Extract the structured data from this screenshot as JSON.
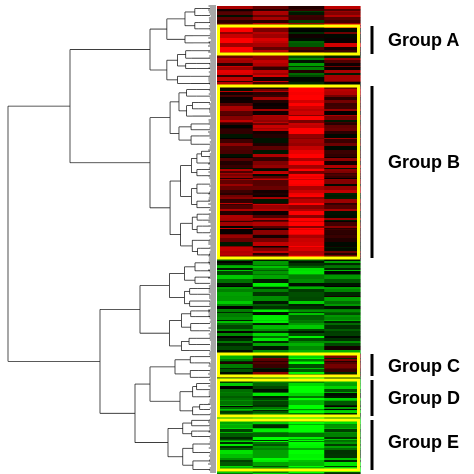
{
  "chart_data": {
    "type": "heatmap",
    "columns": 4,
    "color_scale": {
      "low": "#00ff00",
      "mid": "#000000",
      "high": "#ff0000"
    },
    "highlight_color": "#ffff00",
    "groups": [
      {
        "id": "A",
        "label": "Group A",
        "pattern": [
          0.85,
          0.8,
          -0.1,
          0.4
        ]
      },
      {
        "id": "B",
        "label": "Group B",
        "pattern": [
          0.35,
          0.35,
          0.9,
          0.3
        ]
      },
      {
        "id": "C",
        "label": "Group C",
        "pattern": [
          -0.3,
          0.1,
          -0.7,
          0.1
        ]
      },
      {
        "id": "D",
        "label": "Group D",
        "pattern": [
          -0.4,
          -0.5,
          -0.9,
          -0.4
        ]
      },
      {
        "id": "E",
        "label": "Group E",
        "pattern": [
          -0.6,
          -0.6,
          -0.9,
          -0.6
        ]
      }
    ],
    "unlabeled_clusters": [
      {
        "position": "above-A",
        "pattern": [
          0.3,
          0.3,
          0.1,
          0.6
        ]
      },
      {
        "position": "between-A-and-B",
        "pattern": [
          0.5,
          0.4,
          -0.2,
          0.3
        ]
      },
      {
        "position": "between-B-and-C",
        "pattern": [
          -0.4,
          -0.5,
          -0.5,
          -0.3
        ]
      }
    ]
  }
}
